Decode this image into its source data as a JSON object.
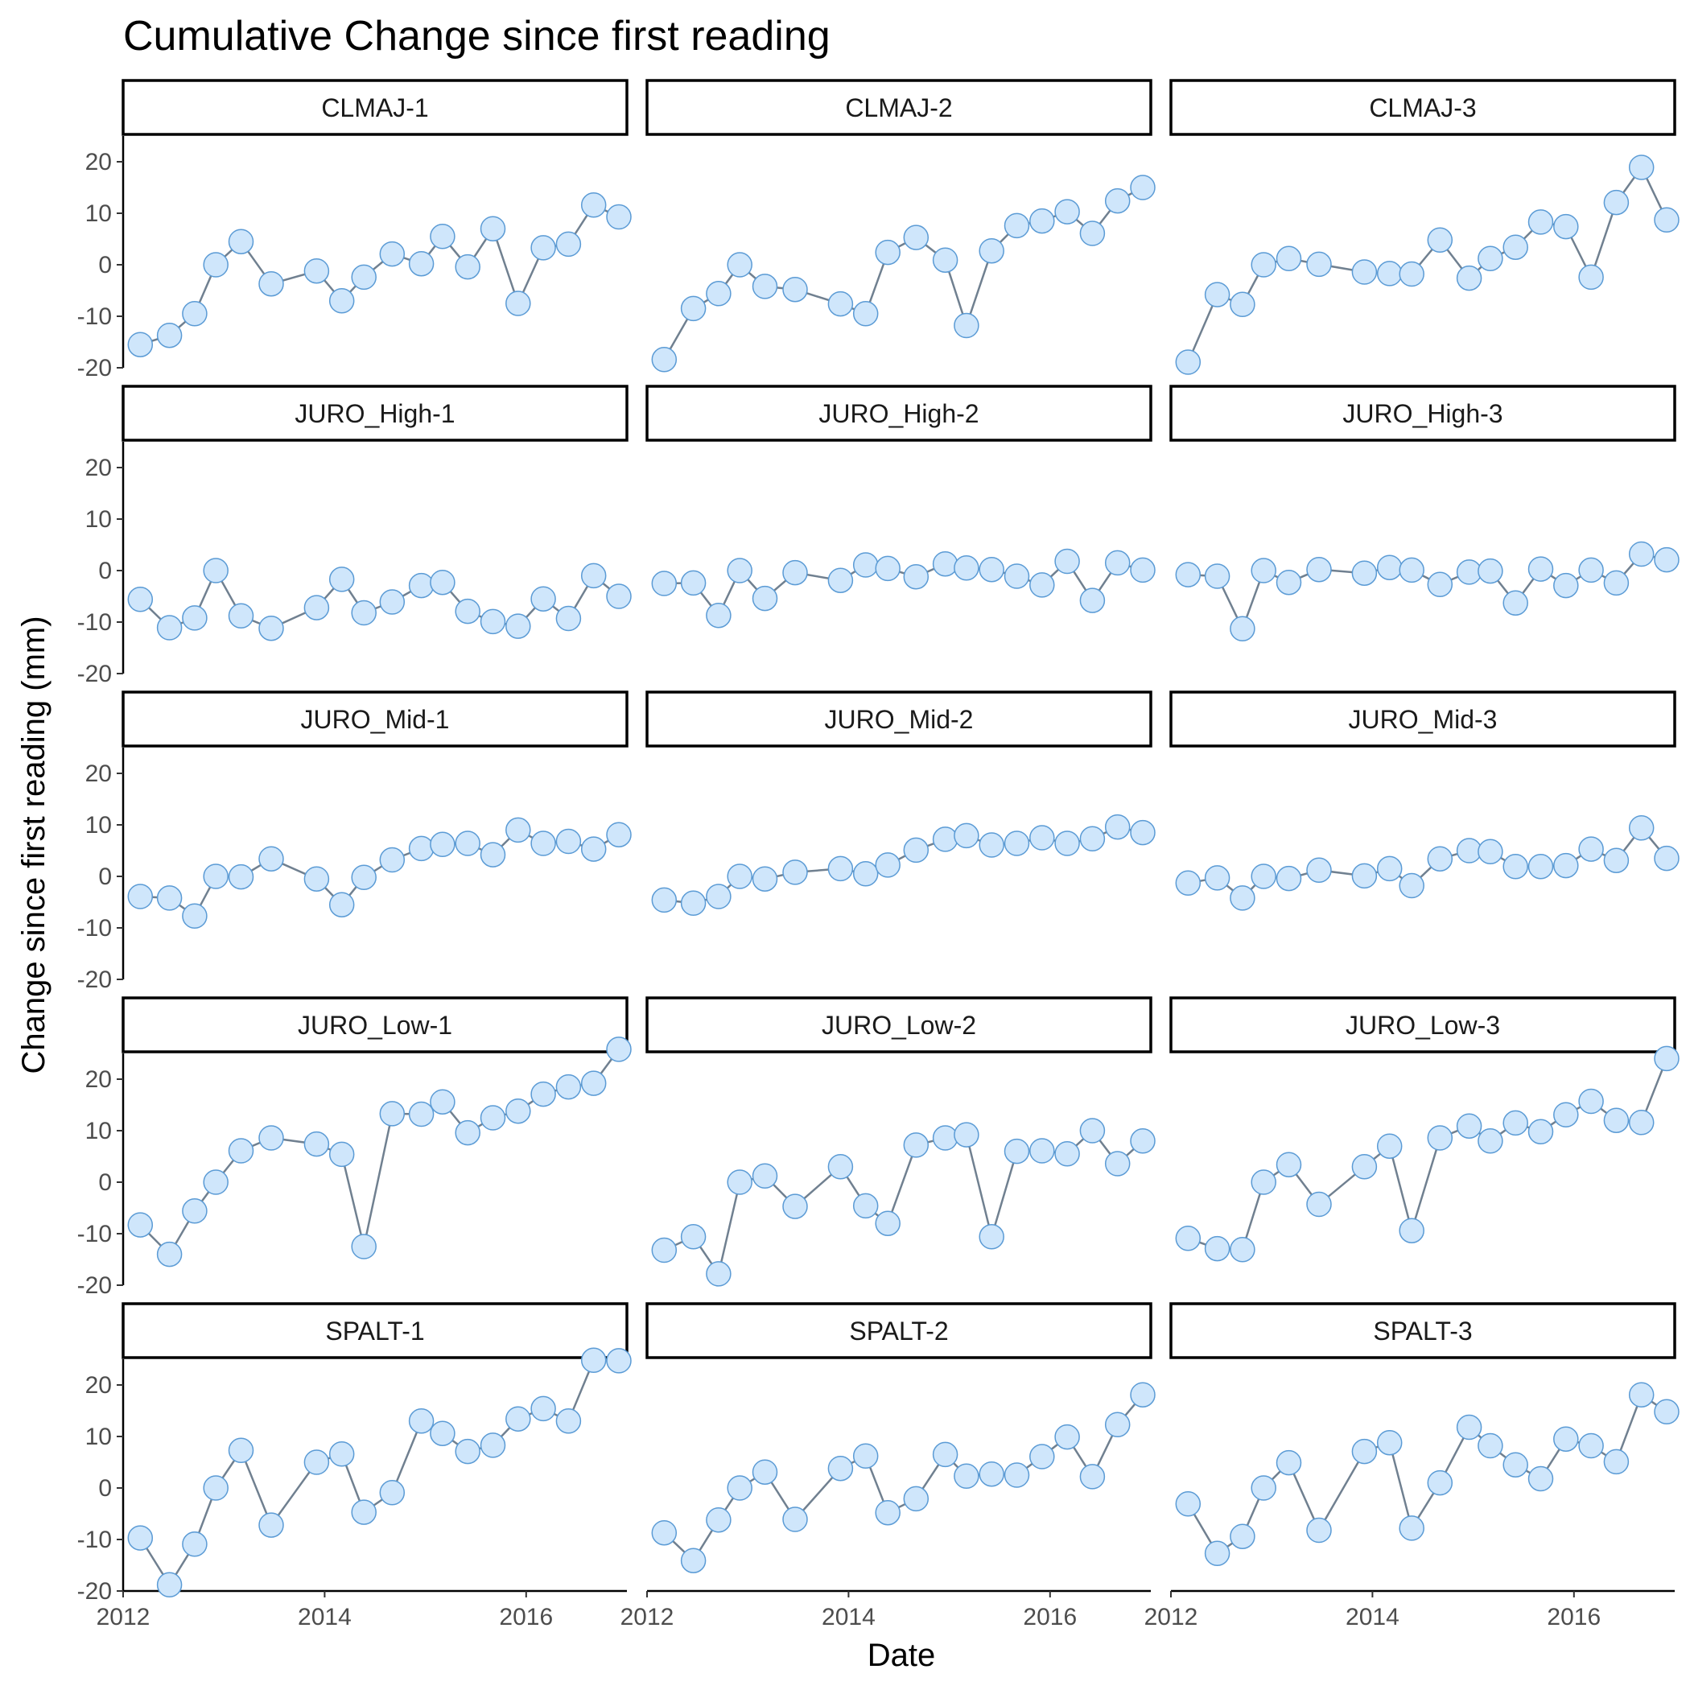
{
  "chart_data": {
    "type": "line",
    "title": "Cumulative Change since first reading",
    "xlabel": "Date",
    "ylabel": "Change since first reading (mm)",
    "xlim": [
      2012.0,
      2017.0
    ],
    "ylim": [
      -20,
      25
    ],
    "x_ticks": [
      2012,
      2014,
      2016
    ],
    "y_ticks": [
      -20,
      -10,
      0,
      10,
      20
    ],
    "grid": false,
    "legend": "none",
    "layout": {
      "rows": 5,
      "cols": 3,
      "shared_axes": true
    },
    "colors": {
      "line": "#708090",
      "point_fill": "#cfe6fb",
      "point_stroke": "#5b9bd5"
    },
    "x": [
      2012.17,
      2012.46,
      2012.71,
      2012.92,
      2013.17,
      2013.47,
      2013.92,
      2014.17,
      2014.39,
      2014.67,
      2014.96,
      2015.17,
      2015.42,
      2015.67,
      2015.92,
      2016.17,
      2016.42,
      2016.67,
      2016.92
    ],
    "panels": [
      {
        "name": "CLMAJ-1",
        "values": [
          -15.5,
          -13.7,
          -9.5,
          0,
          4.5,
          -3.7,
          -1.2,
          -7,
          -2.4,
          2.1,
          0.2,
          5.5,
          -0.4,
          7,
          -7.5,
          3.3,
          4,
          11.6,
          9.3
        ]
      },
      {
        "name": "CLMAJ-2",
        "values": [
          -18.4,
          -8.5,
          -5.6,
          0,
          -4.2,
          -4.8,
          -7.6,
          -9.5,
          2.4,
          5.3,
          0.9,
          -11.8,
          2.7,
          7.6,
          8.5,
          10.3,
          6.1,
          12.4,
          15
        ]
      },
      {
        "name": "CLMAJ-3",
        "values": [
          -18.9,
          -5.8,
          -7.7,
          0,
          1.2,
          0.1,
          -1.4,
          -1.7,
          -1.8,
          4.8,
          -2.6,
          1.2,
          3.4,
          8.3,
          7.4,
          -2.4,
          12.1,
          18.9,
          8.7
        ]
      },
      {
        "name": "JURO_High-1",
        "values": [
          -5.6,
          -11.1,
          -9.2,
          0,
          -8.8,
          -11.2,
          -7.2,
          -1.7,
          -8.2,
          -6.1,
          -2.9,
          -2.3,
          -7.9,
          -9.9,
          -10.8,
          -5.5,
          -9.3,
          -1,
          -5
        ]
      },
      {
        "name": "JURO_High-2",
        "values": [
          -2.5,
          -2.4,
          -8.7,
          0,
          -5.4,
          -0.4,
          -1.9,
          1.1,
          0.4,
          -1.2,
          1.3,
          0.5,
          0.2,
          -1.1,
          -2.8,
          1.8,
          -5.8,
          1.5,
          0.1
        ]
      },
      {
        "name": "JURO_High-3",
        "values": [
          -0.8,
          -1.1,
          -11.3,
          0,
          -2.3,
          0.2,
          -0.5,
          0.6,
          0.1,
          -2.7,
          -0.3,
          -0.1,
          -6.3,
          0.3,
          -2.9,
          0.1,
          -2.4,
          3.2,
          2.1
        ]
      },
      {
        "name": "JURO_Mid-1",
        "values": [
          -3.9,
          -4.2,
          -7.7,
          0,
          -0.1,
          3.4,
          -0.5,
          -5.5,
          -0.2,
          3.2,
          5.4,
          6.2,
          6.4,
          4.2,
          9,
          6.4,
          6.8,
          5.3,
          8.1
        ]
      },
      {
        "name": "JURO_Mid-2",
        "values": [
          -4.6,
          -5.2,
          -3.9,
          0,
          -0.5,
          0.8,
          1.5,
          0.5,
          2.2,
          5.1,
          7.2,
          7.9,
          6.1,
          6.4,
          7.5,
          6.4,
          7.3,
          9.6,
          8.5
        ]
      },
      {
        "name": "JURO_Mid-3",
        "values": [
          -1.3,
          -0.3,
          -4.2,
          0,
          -0.4,
          1.2,
          0.1,
          1.5,
          -1.8,
          3.4,
          5,
          4.8,
          1.9,
          1.9,
          2.1,
          5.3,
          3.1,
          9.4,
          3.5
        ]
      },
      {
        "name": "JURO_Low-1",
        "values": [
          -8.3,
          -14,
          -5.6,
          0,
          6.1,
          8.6,
          7.4,
          5.4,
          -12.5,
          13.3,
          13.2,
          15.6,
          9.6,
          12.5,
          13.8,
          17.1,
          18.5,
          19.2,
          25.8
        ]
      },
      {
        "name": "JURO_Low-2",
        "values": [
          -13.2,
          -10.6,
          -17.8,
          0,
          1.2,
          -4.7,
          3,
          -4.6,
          -8,
          7.2,
          8.6,
          9.2,
          -10.6,
          6,
          6.1,
          5.5,
          10,
          3.6,
          8
        ]
      },
      {
        "name": "JURO_Low-3",
        "values": [
          -10.9,
          -12.9,
          -13.1,
          0,
          3.4,
          -4.3,
          3,
          7,
          -9.4,
          8.6,
          10.9,
          8,
          11.5,
          9.8,
          13.1,
          15.7,
          12,
          11.6,
          24
        ]
      },
      {
        "name": "SPALT-1",
        "values": [
          -9.7,
          -18.8,
          -10.9,
          0,
          7.3,
          -7.2,
          5,
          6.6,
          -4.7,
          -0.9,
          13,
          10.6,
          7.1,
          8.3,
          13.4,
          15.4,
          13,
          24.8,
          24.7
        ]
      },
      {
        "name": "SPALT-2",
        "values": [
          -8.7,
          -14.1,
          -6.2,
          0,
          3.1,
          -6.1,
          3.8,
          6.2,
          -4.8,
          -2.1,
          6.5,
          2.3,
          2.7,
          2.5,
          6.1,
          9.9,
          2.2,
          12.3,
          18.1
        ]
      },
      {
        "name": "SPALT-3",
        "values": [
          -3.1,
          -12.7,
          -9.4,
          0,
          4.9,
          -8.2,
          7.1,
          8.8,
          -7.8,
          1,
          11.8,
          8.2,
          4.5,
          1.8,
          9.5,
          8.2,
          5.1,
          18.1,
          14.8
        ]
      }
    ]
  }
}
